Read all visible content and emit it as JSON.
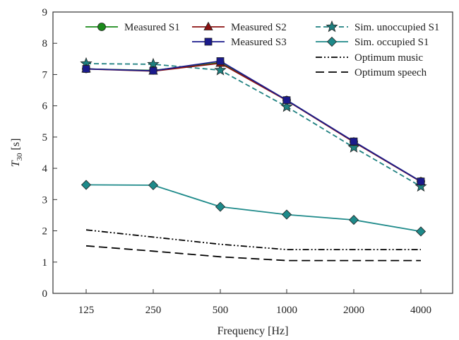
{
  "chart_data": {
    "type": "line",
    "xlabel": "Frequency  [Hz]",
    "ylabel": {
      "base": "T",
      "sub": "30",
      "unit": "  [s]"
    },
    "categories": [
      "125",
      "250",
      "500",
      "1000",
      "2000",
      "4000"
    ],
    "ylim": [
      0,
      9
    ],
    "yticks": [
      0,
      1,
      2,
      3,
      4,
      5,
      6,
      7,
      8,
      9
    ],
    "grid": false,
    "legend_position": "top",
    "series": [
      {
        "name": "Measured S1",
        "values": [
          7.18,
          7.13,
          7.38,
          6.18,
          4.85,
          3.58
        ],
        "color": "#1a8a1a",
        "marker": "circle",
        "dash": "solid"
      },
      {
        "name": "Measured S2",
        "values": [
          7.18,
          7.11,
          7.36,
          6.17,
          4.84,
          3.57
        ],
        "color": "#8b1010",
        "marker": "triangle",
        "dash": "solid"
      },
      {
        "name": "Measured S3",
        "values": [
          7.18,
          7.12,
          7.43,
          6.18,
          4.86,
          3.58
        ],
        "color": "#1a1a8c",
        "marker": "square",
        "dash": "solid"
      },
      {
        "name": "Sim. unoccupied S1",
        "values": [
          7.35,
          7.33,
          7.14,
          5.97,
          4.67,
          3.42
        ],
        "color": "#1e8080",
        "marker": "star",
        "dash": "dashed"
      },
      {
        "name": "Sim. occupied S1",
        "values": [
          3.47,
          3.46,
          2.77,
          2.52,
          2.35,
          1.98
        ],
        "color": "#1e8a8a",
        "marker": "diamond",
        "dash": "solid"
      },
      {
        "name": "Optimum music",
        "values": [
          2.03,
          1.8,
          1.57,
          1.4,
          1.4,
          1.4
        ],
        "color": "#000000",
        "marker": "none",
        "dash": "dashdotdot"
      },
      {
        "name": "Optimum speech",
        "values": [
          1.52,
          1.35,
          1.17,
          1.05,
          1.05,
          1.05
        ],
        "color": "#000000",
        "marker": "none",
        "dash": "longdash"
      }
    ]
  }
}
